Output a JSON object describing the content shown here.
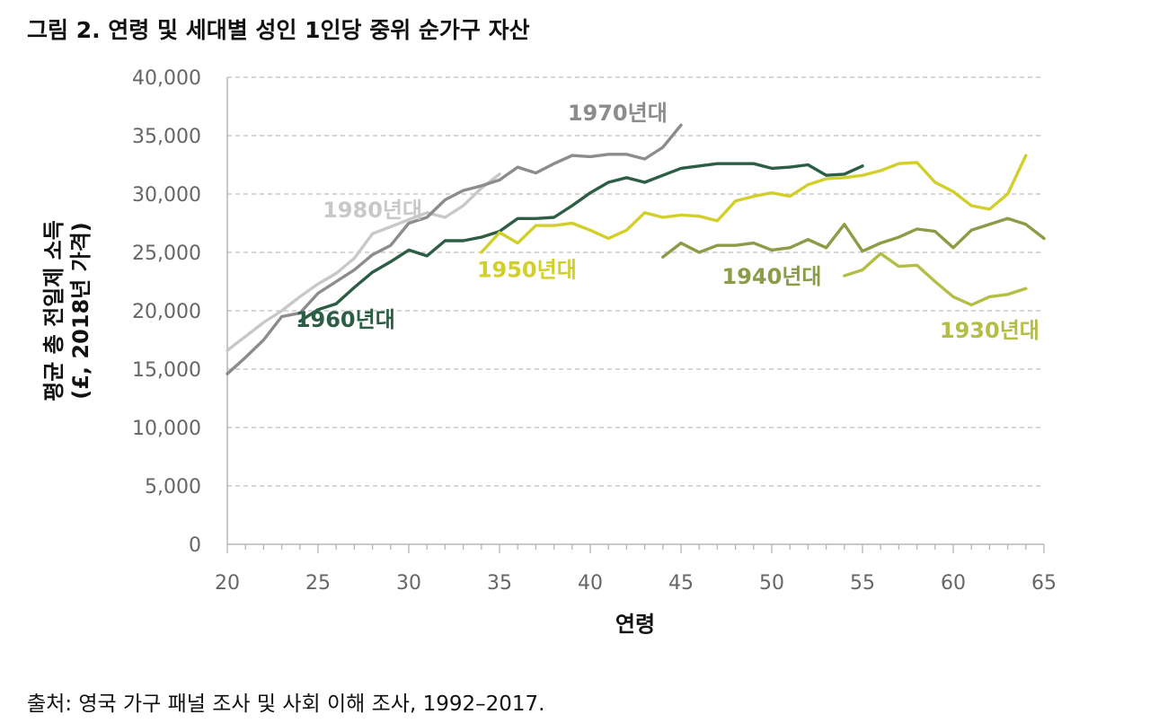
{
  "figure": {
    "title": "그림 2. 연령 및 세대별 성인 1인당 중위 순가구 자산",
    "source": "출처: 영국 가구 패널 조사 및 사회 이해 조사, 1992–2017."
  },
  "chart_data": {
    "type": "line",
    "xlabel": "연령",
    "ylabel_line1": "평균 총 전일제 소득",
    "ylabel_line2": "(£, 2018년 가격)",
    "xlim": [
      20,
      65
    ],
    "ylim": [
      0,
      40000
    ],
    "x_ticks": [
      20,
      25,
      30,
      35,
      40,
      45,
      50,
      55,
      60,
      65
    ],
    "y_ticks": [
      {
        "value": 0,
        "label": "0"
      },
      {
        "value": 5000,
        "label": "5,000"
      },
      {
        "value": 10000,
        "label": "10,000"
      },
      {
        "value": 15000,
        "label": "15,000"
      },
      {
        "value": 20000,
        "label": "20,000"
      },
      {
        "value": 25000,
        "label": "25,000"
      },
      {
        "value": 30000,
        "label": "30,000"
      },
      {
        "value": 35000,
        "label": "35,000"
      },
      {
        "value": 40000,
        "label": "40,000"
      }
    ],
    "grid": "horizontal dashed",
    "series": [
      {
        "name": "1980년대",
        "color": "#c8c8c8",
        "label_at": [
          28,
          28000
        ],
        "points": [
          [
            20,
            16600
          ],
          [
            21,
            17800
          ],
          [
            22,
            19000
          ],
          [
            23,
            20000
          ],
          [
            24,
            21200
          ],
          [
            25,
            22300
          ],
          [
            26,
            23200
          ],
          [
            27,
            24500
          ],
          [
            28,
            26600
          ],
          [
            29,
            27200
          ],
          [
            30,
            27800
          ],
          [
            31,
            28400
          ],
          [
            32,
            28000
          ],
          [
            33,
            29000
          ],
          [
            34,
            30500
          ],
          [
            35,
            31700
          ]
        ]
      },
      {
        "name": "1970년대",
        "color": "#8c8c8c",
        "label_at": [
          41.5,
          36300
        ],
        "points": [
          [
            20,
            14600
          ],
          [
            21,
            16000
          ],
          [
            22,
            17500
          ],
          [
            23,
            19500
          ],
          [
            24,
            19800
          ],
          [
            25,
            21500
          ],
          [
            26,
            22500
          ],
          [
            27,
            23500
          ],
          [
            28,
            24800
          ],
          [
            29,
            25600
          ],
          [
            30,
            27500
          ],
          [
            31,
            28000
          ],
          [
            32,
            29500
          ],
          [
            33,
            30300
          ],
          [
            34,
            30700
          ],
          [
            35,
            31200
          ],
          [
            36,
            32300
          ],
          [
            37,
            31800
          ],
          [
            38,
            32600
          ],
          [
            39,
            33300
          ],
          [
            40,
            33200
          ],
          [
            41,
            33400
          ],
          [
            42,
            33400
          ],
          [
            43,
            33000
          ],
          [
            44,
            34000
          ],
          [
            45,
            35900
          ]
        ]
      },
      {
        "name": "1960년대",
        "color": "#2d5e45",
        "label_at": [
          26.5,
          18600
        ],
        "points": [
          [
            24,
            19100
          ],
          [
            25,
            20100
          ],
          [
            26,
            20600
          ],
          [
            27,
            22000
          ],
          [
            28,
            23300
          ],
          [
            29,
            24200
          ],
          [
            30,
            25200
          ],
          [
            31,
            24700
          ],
          [
            32,
            26000
          ],
          [
            33,
            26000
          ],
          [
            34,
            26300
          ],
          [
            35,
            26800
          ],
          [
            36,
            27900
          ],
          [
            37,
            27900
          ],
          [
            38,
            28000
          ],
          [
            39,
            29000
          ],
          [
            40,
            30100
          ],
          [
            41,
            31000
          ],
          [
            42,
            31400
          ],
          [
            43,
            31000
          ],
          [
            44,
            31600
          ],
          [
            45,
            32200
          ],
          [
            46,
            32400
          ],
          [
            47,
            32600
          ],
          [
            48,
            32600
          ],
          [
            49,
            32600
          ],
          [
            50,
            32200
          ],
          [
            51,
            32300
          ],
          [
            52,
            32500
          ],
          [
            53,
            31600
          ],
          [
            54,
            31700
          ],
          [
            55,
            32400
          ]
        ]
      },
      {
        "name": "1950년대",
        "color": "#d2cf2a",
        "label_at": [
          36.5,
          22900
        ],
        "points": [
          [
            34,
            25000
          ],
          [
            35,
            26700
          ],
          [
            36,
            25800
          ],
          [
            37,
            27300
          ],
          [
            38,
            27300
          ],
          [
            39,
            27500
          ],
          [
            40,
            26900
          ],
          [
            41,
            26200
          ],
          [
            42,
            26900
          ],
          [
            43,
            28400
          ],
          [
            44,
            28000
          ],
          [
            45,
            28200
          ],
          [
            46,
            28100
          ],
          [
            47,
            27700
          ],
          [
            48,
            29400
          ],
          [
            49,
            29800
          ],
          [
            50,
            30100
          ],
          [
            51,
            29800
          ],
          [
            52,
            30800
          ],
          [
            53,
            31300
          ],
          [
            54,
            31400
          ],
          [
            55,
            31600
          ],
          [
            56,
            32000
          ],
          [
            57,
            32600
          ],
          [
            58,
            32700
          ],
          [
            59,
            31000
          ],
          [
            60,
            30200
          ],
          [
            61,
            29000
          ],
          [
            62,
            28700
          ],
          [
            63,
            30000
          ],
          [
            64,
            33300
          ]
        ]
      },
      {
        "name": "1940년대",
        "color": "#8b9c47",
        "label_at": [
          50,
          22300
        ],
        "points": [
          [
            44,
            24600
          ],
          [
            45,
            25800
          ],
          [
            46,
            25000
          ],
          [
            47,
            25600
          ],
          [
            48,
            25600
          ],
          [
            49,
            25800
          ],
          [
            50,
            25200
          ],
          [
            51,
            25400
          ],
          [
            52,
            26100
          ],
          [
            53,
            25400
          ],
          [
            54,
            27400
          ],
          [
            55,
            25100
          ],
          [
            56,
            25800
          ],
          [
            57,
            26300
          ],
          [
            58,
            27000
          ],
          [
            59,
            26800
          ],
          [
            60,
            25400
          ],
          [
            61,
            26900
          ],
          [
            62,
            27400
          ],
          [
            63,
            27900
          ],
          [
            64,
            27400
          ],
          [
            65,
            26200
          ]
        ]
      },
      {
        "name": "1930년대",
        "color": "#b4be44",
        "label_at": [
          62,
          17700
        ],
        "points": [
          [
            54,
            23000
          ],
          [
            55,
            23500
          ],
          [
            56,
            24900
          ],
          [
            57,
            23800
          ],
          [
            58,
            23900
          ],
          [
            59,
            22500
          ],
          [
            60,
            21200
          ],
          [
            61,
            20500
          ],
          [
            62,
            21200
          ],
          [
            63,
            21400
          ],
          [
            64,
            21900
          ]
        ]
      }
    ]
  }
}
